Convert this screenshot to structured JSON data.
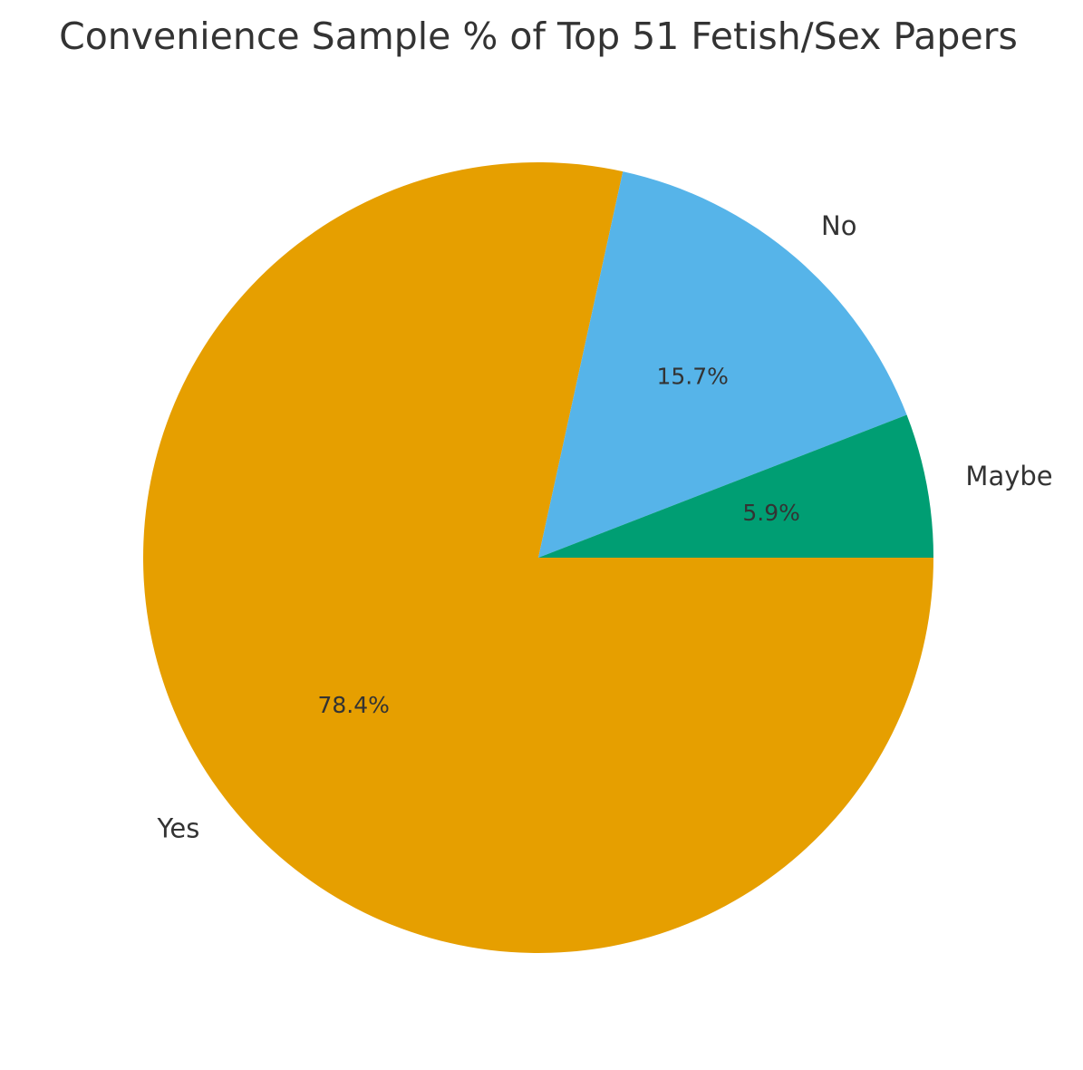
{
  "chart_data": {
    "type": "pie",
    "title": "Convenience Sample % of Top 51 Fetish/Sex Papers",
    "start_angle_deg": 0,
    "direction": "clockwise",
    "slices": [
      {
        "label": "Yes",
        "value": 40,
        "pct_label": "78.4%",
        "color": "#E69F00"
      },
      {
        "label": "No",
        "value": 8,
        "pct_label": "15.7%",
        "color": "#56B4E9"
      },
      {
        "label": "Maybe",
        "value": 3,
        "pct_label": "5.9%",
        "color": "#009E73"
      }
    ]
  }
}
